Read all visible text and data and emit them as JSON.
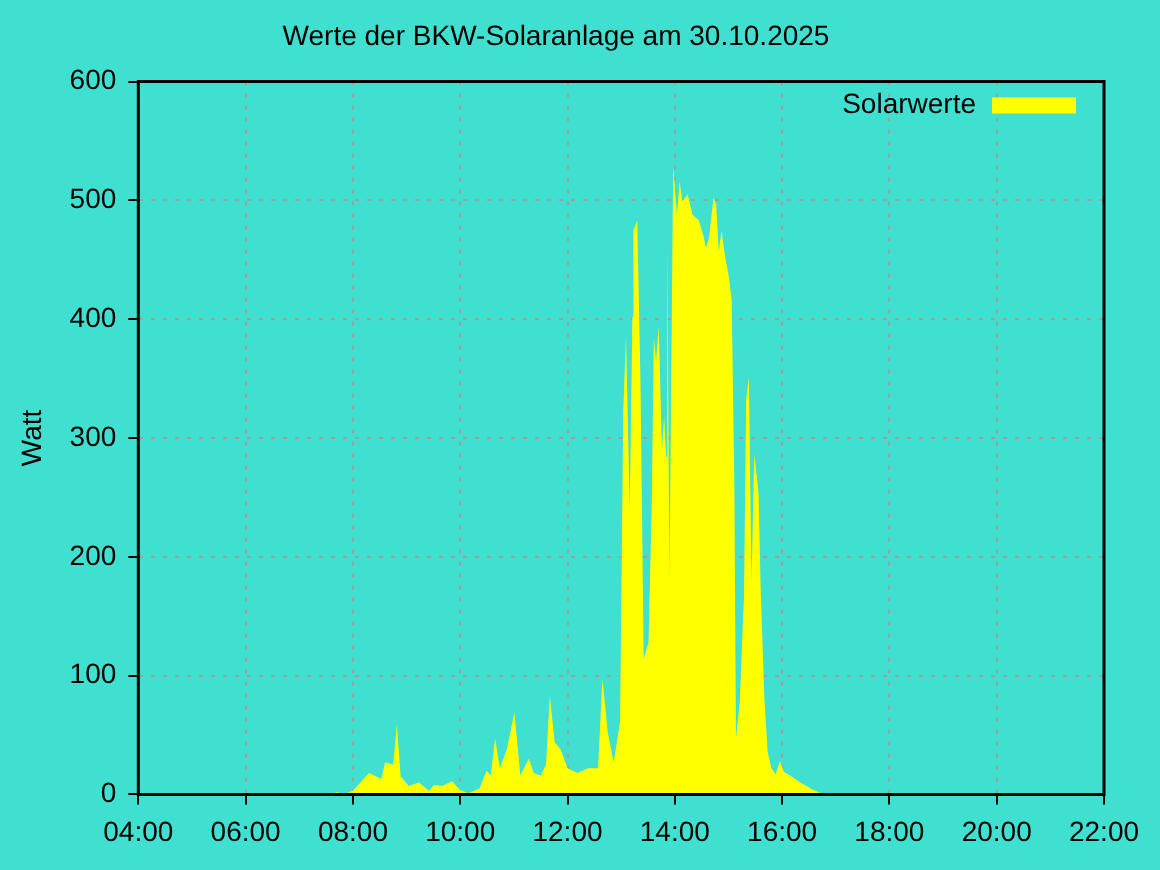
{
  "chart_data": {
    "type": "area",
    "title": "Werte der BKW-Solaranlage am 30.10.2025",
    "ylabel": "Watt",
    "xlim": [
      4,
      22
    ],
    "xticks": [
      {
        "value": 4,
        "label": "04:00"
      },
      {
        "value": 6,
        "label": "06:00"
      },
      {
        "value": 8,
        "label": "08:00"
      },
      {
        "value": 10,
        "label": "10:00"
      },
      {
        "value": 12,
        "label": "12:00"
      },
      {
        "value": 14,
        "label": "14:00"
      },
      {
        "value": 16,
        "label": "16:00"
      },
      {
        "value": 18,
        "label": "18:00"
      },
      {
        "value": 20,
        "label": "20:00"
      },
      {
        "value": 22,
        "label": "22:00"
      }
    ],
    "ylim": [
      0,
      600
    ],
    "yticks": [
      0,
      100,
      200,
      300,
      400,
      500,
      600
    ],
    "grid": true,
    "legend": "top right",
    "series": [
      {
        "name": "Solarwerte",
        "color": "#ffff00",
        "x": [
          7.6,
          7.7,
          7.8,
          8.0,
          8.3,
          8.53,
          8.6,
          8.75,
          8.82,
          8.89,
          9.04,
          9.23,
          9.42,
          9.51,
          9.66,
          9.85,
          9.99,
          10.15,
          10.36,
          10.49,
          10.57,
          10.65,
          10.74,
          10.87,
          11.01,
          11.12,
          11.28,
          11.37,
          11.5,
          11.6,
          11.67,
          11.76,
          11.87,
          12.0,
          12.19,
          12.38,
          12.57,
          12.65,
          12.75,
          12.86,
          12.98,
          13.04,
          13.09,
          13.16,
          13.21,
          13.23,
          13.3,
          13.36,
          13.42,
          13.51,
          13.57,
          13.61,
          13.65,
          13.7,
          13.76,
          13.8,
          13.84,
          13.86,
          13.9,
          13.97,
          14.04,
          14.09,
          14.14,
          14.24,
          14.33,
          14.45,
          14.54,
          14.58,
          14.64,
          14.72,
          14.77,
          14.82,
          14.87,
          14.94,
          15.01,
          15.06,
          15.11,
          15.14,
          15.21,
          15.29,
          15.33,
          15.38,
          15.43,
          15.48,
          15.56,
          15.6,
          15.67,
          15.73,
          15.8,
          15.88,
          15.96,
          16.03,
          16.15,
          16.34,
          16.53,
          16.72,
          16.8
        ],
        "values": [
          0,
          2,
          0,
          3,
          18,
          13,
          27,
          25,
          59,
          15,
          7,
          10,
          3,
          8,
          7,
          11,
          4,
          1,
          5,
          20,
          16,
          47,
          22,
          38,
          69,
          16,
          30,
          18,
          16,
          25,
          83,
          44,
          38,
          22,
          18,
          22,
          22,
          97,
          52,
          27,
          61,
          323,
          385,
          240,
          402,
          475,
          483,
          347,
          114,
          128,
          243,
          384,
          365,
          394,
          290,
          318,
          284,
          466,
          181,
          529,
          488,
          516,
          499,
          505,
          488,
          483,
          469,
          460,
          469,
          502,
          497,
          457,
          474,
          452,
          435,
          416,
          259,
          47,
          78,
          167,
          332,
          351,
          178,
          287,
          254,
          173,
          80,
          36,
          22,
          17,
          28,
          19,
          16,
          10,
          5,
          1,
          0
        ]
      }
    ]
  }
}
